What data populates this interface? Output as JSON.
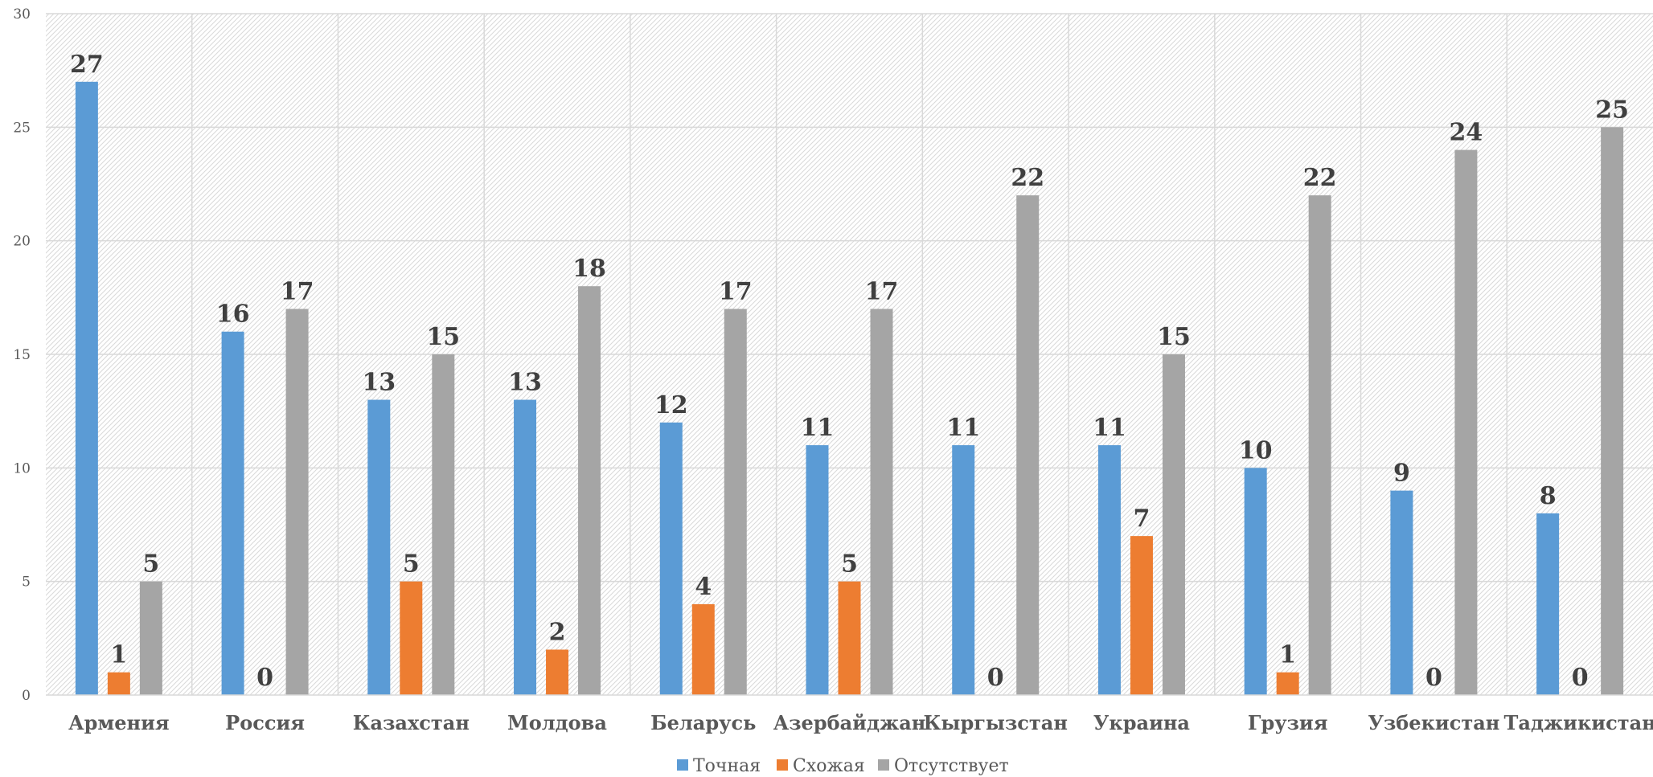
{
  "chart_data": {
    "type": "bar",
    "title": "",
    "xlabel": "",
    "ylabel": "",
    "ylim": [
      0,
      30
    ],
    "yticks": [
      0,
      5,
      10,
      15,
      20,
      25,
      30
    ],
    "grid": true,
    "legend_position": "bottom",
    "categories": [
      "Армения",
      "Россия",
      "Казахстан",
      "Молдова",
      "Беларусь",
      "Азербайджан",
      "Кыргызстан",
      "Украина",
      "Грузия",
      "Узбекистан",
      "Таджикистан"
    ],
    "series": [
      {
        "name": "Точная",
        "color": "#5b9bd5",
        "values": [
          27,
          16,
          13,
          13,
          12,
          11,
          11,
          11,
          10,
          9,
          8
        ]
      },
      {
        "name": "Схожая",
        "color": "#ed7d31",
        "values": [
          1,
          0,
          5,
          2,
          4,
          5,
          0,
          7,
          1,
          0,
          0
        ]
      },
      {
        "name": "Отсутствует",
        "color": "#a5a5a5",
        "values": [
          5,
          17,
          15,
          18,
          17,
          17,
          22,
          15,
          22,
          24,
          25
        ]
      }
    ]
  }
}
